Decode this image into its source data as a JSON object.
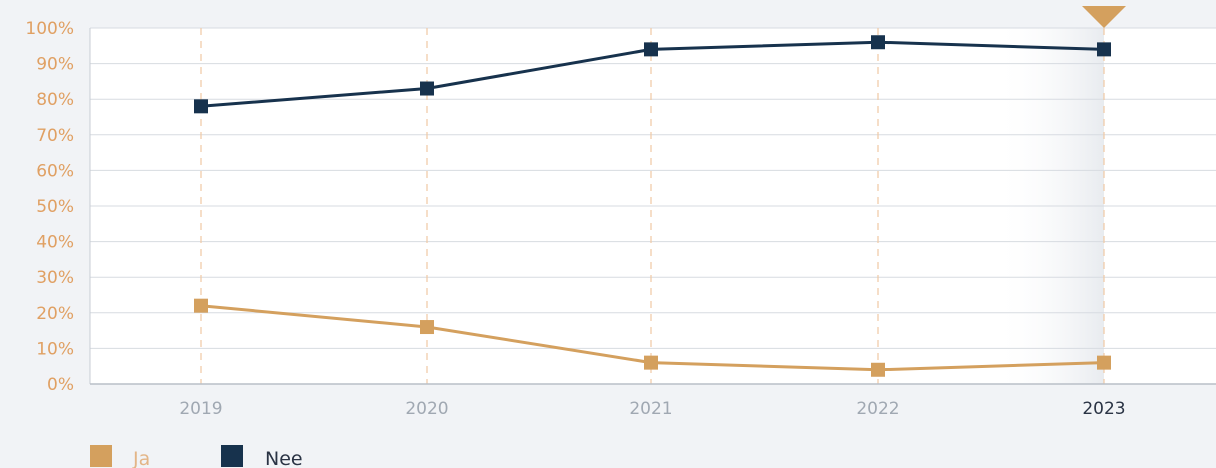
{
  "chart_data": {
    "type": "line",
    "categories": [
      "2019",
      "2020",
      "2021",
      "2022",
      "2023"
    ],
    "selected_category": "2023",
    "ylim": [
      0,
      100
    ],
    "yticks": [
      "0%",
      "10%",
      "20%",
      "30%",
      "40%",
      "50%",
      "60%",
      "70%",
      "80%",
      "90%",
      "100%"
    ],
    "series": [
      {
        "name": "Ja",
        "color": "#d4a05e",
        "values": [
          22,
          16,
          6,
          4,
          6
        ]
      },
      {
        "name": "Nee",
        "color": "#17324d",
        "values": [
          78,
          83,
          94,
          96,
          94
        ]
      }
    ],
    "grid": true,
    "legend_placement": "bottom-left"
  },
  "colors": {
    "background": "#f1f3f6",
    "plot_background": "#ffffff",
    "gridline": "#d7dbe1",
    "category_guide": "#f0c9a4",
    "selected_marker": "#d4a05e"
  },
  "legend": {
    "items": [
      {
        "label": "Ja"
      },
      {
        "label": "Nee"
      }
    ]
  }
}
